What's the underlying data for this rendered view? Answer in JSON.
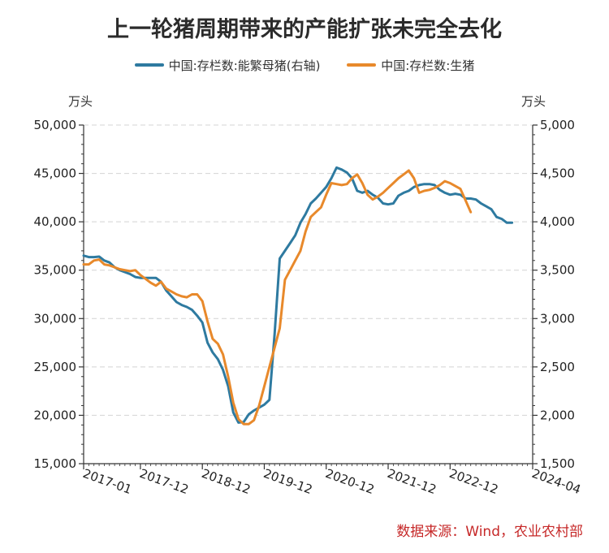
{
  "chart_data": {
    "type": "line",
    "title": "上一轮猪周期带来的产能扩张未完全去化",
    "source": "数据来源：Wind，农业农村部",
    "left_unit": "万头",
    "right_unit": "万头",
    "left_axis": {
      "min": 15000,
      "max": 50000,
      "ticks": [
        15000,
        20000,
        25000,
        30000,
        35000,
        40000,
        45000,
        50000
      ],
      "tick_labels": [
        "15,000",
        "20,000",
        "25,000",
        "30,000",
        "35,000",
        "40,000",
        "45,000",
        "50,000"
      ]
    },
    "right_axis": {
      "min": 1500,
      "max": 5000,
      "ticks": [
        1500,
        2000,
        2500,
        3000,
        3500,
        4000,
        4500,
        5000
      ],
      "tick_labels": [
        "1,500",
        "2,000",
        "2,500",
        "3,000",
        "3,500",
        "4,000",
        "4,500",
        "5,000"
      ]
    },
    "grid": true,
    "legend_position": "top",
    "x_range": [
      0,
      87
    ],
    "x_labels": [
      {
        "x": 0,
        "label": "2017-01"
      },
      {
        "x": 11,
        "label": "2017-12"
      },
      {
        "x": 23,
        "label": "2018-12"
      },
      {
        "x": 35,
        "label": "2019-12"
      },
      {
        "x": 47,
        "label": "2020-12"
      },
      {
        "x": 59,
        "label": "2021-12"
      },
      {
        "x": 71,
        "label": "2022-12"
      },
      {
        "x": 87,
        "label": "2024-04"
      }
    ],
    "series": [
      {
        "name": "中国:存栏数:能繁母猪(右轴)",
        "axis": "right",
        "color": "#2e7aa0",
        "points": [
          [
            0,
            3650
          ],
          [
            1,
            3635
          ],
          [
            2,
            3635
          ],
          [
            3,
            3640
          ],
          [
            4,
            3600
          ],
          [
            5,
            3580
          ],
          [
            6,
            3530
          ],
          [
            7,
            3500
          ],
          [
            8,
            3480
          ],
          [
            9,
            3460
          ],
          [
            10,
            3430
          ],
          [
            11,
            3420
          ],
          [
            12,
            3420
          ],
          [
            13,
            3420
          ],
          [
            14,
            3420
          ],
          [
            15,
            3380
          ],
          [
            16,
            3290
          ],
          [
            17,
            3230
          ],
          [
            18,
            3170
          ],
          [
            19,
            3140
          ],
          [
            20,
            3120
          ],
          [
            21,
            3090
          ],
          [
            22,
            3030
          ],
          [
            23,
            2960
          ],
          [
            24,
            2750
          ],
          [
            25,
            2650
          ],
          [
            26,
            2580
          ],
          [
            27,
            2470
          ],
          [
            28,
            2300
          ],
          [
            29,
            2030
          ],
          [
            30,
            1925
          ],
          [
            31,
            1930
          ],
          [
            32,
            2010
          ],
          [
            33,
            2050
          ],
          [
            34,
            2080
          ],
          [
            35,
            2110
          ],
          [
            36,
            2160
          ],
          [
            37,
            2840
          ],
          [
            38,
            3620
          ],
          [
            39,
            3700
          ],
          [
            40,
            3780
          ],
          [
            41,
            3860
          ],
          [
            42,
            3990
          ],
          [
            43,
            4080
          ],
          [
            44,
            4190
          ],
          [
            45,
            4240
          ],
          [
            46,
            4300
          ],
          [
            47,
            4360
          ],
          [
            48,
            4450
          ],
          [
            49,
            4560
          ],
          [
            50,
            4540
          ],
          [
            51,
            4510
          ],
          [
            52,
            4450
          ],
          [
            53,
            4320
          ],
          [
            54,
            4300
          ],
          [
            55,
            4320
          ],
          [
            56,
            4280
          ],
          [
            57,
            4250
          ],
          [
            58,
            4190
          ],
          [
            59,
            4180
          ],
          [
            60,
            4190
          ],
          [
            61,
            4270
          ],
          [
            62,
            4300
          ],
          [
            63,
            4320
          ],
          [
            64,
            4360
          ],
          [
            65,
            4380
          ],
          [
            66,
            4390
          ],
          [
            67,
            4390
          ],
          [
            68,
            4380
          ],
          [
            69,
            4330
          ],
          [
            70,
            4300
          ],
          [
            71,
            4280
          ],
          [
            72,
            4290
          ],
          [
            73,
            4280
          ],
          [
            74,
            4240
          ],
          [
            75,
            4240
          ],
          [
            76,
            4230
          ],
          [
            77,
            4190
          ],
          [
            78,
            4160
          ],
          [
            79,
            4130
          ],
          [
            80,
            4050
          ],
          [
            81,
            4030
          ],
          [
            82,
            3990
          ],
          [
            83,
            3990
          ]
        ]
      },
      {
        "name": "中国:存栏数:生猪",
        "axis": "left",
        "color": "#e8892b",
        "points": [
          [
            0,
            35600
          ],
          [
            1,
            35600
          ],
          [
            2,
            36000
          ],
          [
            3,
            36100
          ],
          [
            4,
            35600
          ],
          [
            5,
            35500
          ],
          [
            6,
            35300
          ],
          [
            7,
            35100
          ],
          [
            8,
            35000
          ],
          [
            9,
            34900
          ],
          [
            10,
            35000
          ],
          [
            11,
            34500
          ],
          [
            12,
            34100
          ],
          [
            13,
            33700
          ],
          [
            14,
            33400
          ],
          [
            15,
            33800
          ],
          [
            16,
            33100
          ],
          [
            17,
            32800
          ],
          [
            18,
            32500
          ],
          [
            19,
            32300
          ],
          [
            20,
            32200
          ],
          [
            21,
            32500
          ],
          [
            22,
            32500
          ],
          [
            23,
            31800
          ],
          [
            24,
            29700
          ],
          [
            25,
            27900
          ],
          [
            26,
            27400
          ],
          [
            27,
            26300
          ],
          [
            28,
            24000
          ],
          [
            29,
            21300
          ],
          [
            30,
            19600
          ],
          [
            31,
            19100
          ],
          [
            32,
            19100
          ],
          [
            33,
            19500
          ],
          [
            34,
            21000
          ],
          [
            35,
            23000
          ],
          [
            36,
            25000
          ],
          [
            37,
            27000
          ],
          [
            38,
            29000
          ],
          [
            39,
            34000
          ],
          [
            40,
            35000
          ],
          [
            41,
            36000
          ],
          [
            42,
            37000
          ],
          [
            43,
            39000
          ],
          [
            44,
            40500
          ],
          [
            45,
            41000
          ],
          [
            46,
            41500
          ],
          [
            47,
            42800
          ],
          [
            48,
            44000
          ],
          [
            49,
            43900
          ],
          [
            50,
            43800
          ],
          [
            51,
            43900
          ],
          [
            52,
            44500
          ],
          [
            53,
            44900
          ],
          [
            54,
            44000
          ],
          [
            55,
            42800
          ],
          [
            56,
            42300
          ],
          [
            57,
            42600
          ],
          [
            58,
            43000
          ],
          [
            59,
            43500
          ],
          [
            60,
            44000
          ],
          [
            61,
            44500
          ],
          [
            62,
            44900
          ],
          [
            63,
            45300
          ],
          [
            64,
            44500
          ],
          [
            65,
            43000
          ],
          [
            66,
            43200
          ],
          [
            67,
            43300
          ],
          [
            68,
            43500
          ],
          [
            69,
            43800
          ],
          [
            70,
            44200
          ],
          [
            71,
            44000
          ],
          [
            72,
            43700
          ],
          [
            73,
            43400
          ],
          [
            74,
            42200
          ],
          [
            75,
            41000
          ]
        ]
      }
    ]
  }
}
